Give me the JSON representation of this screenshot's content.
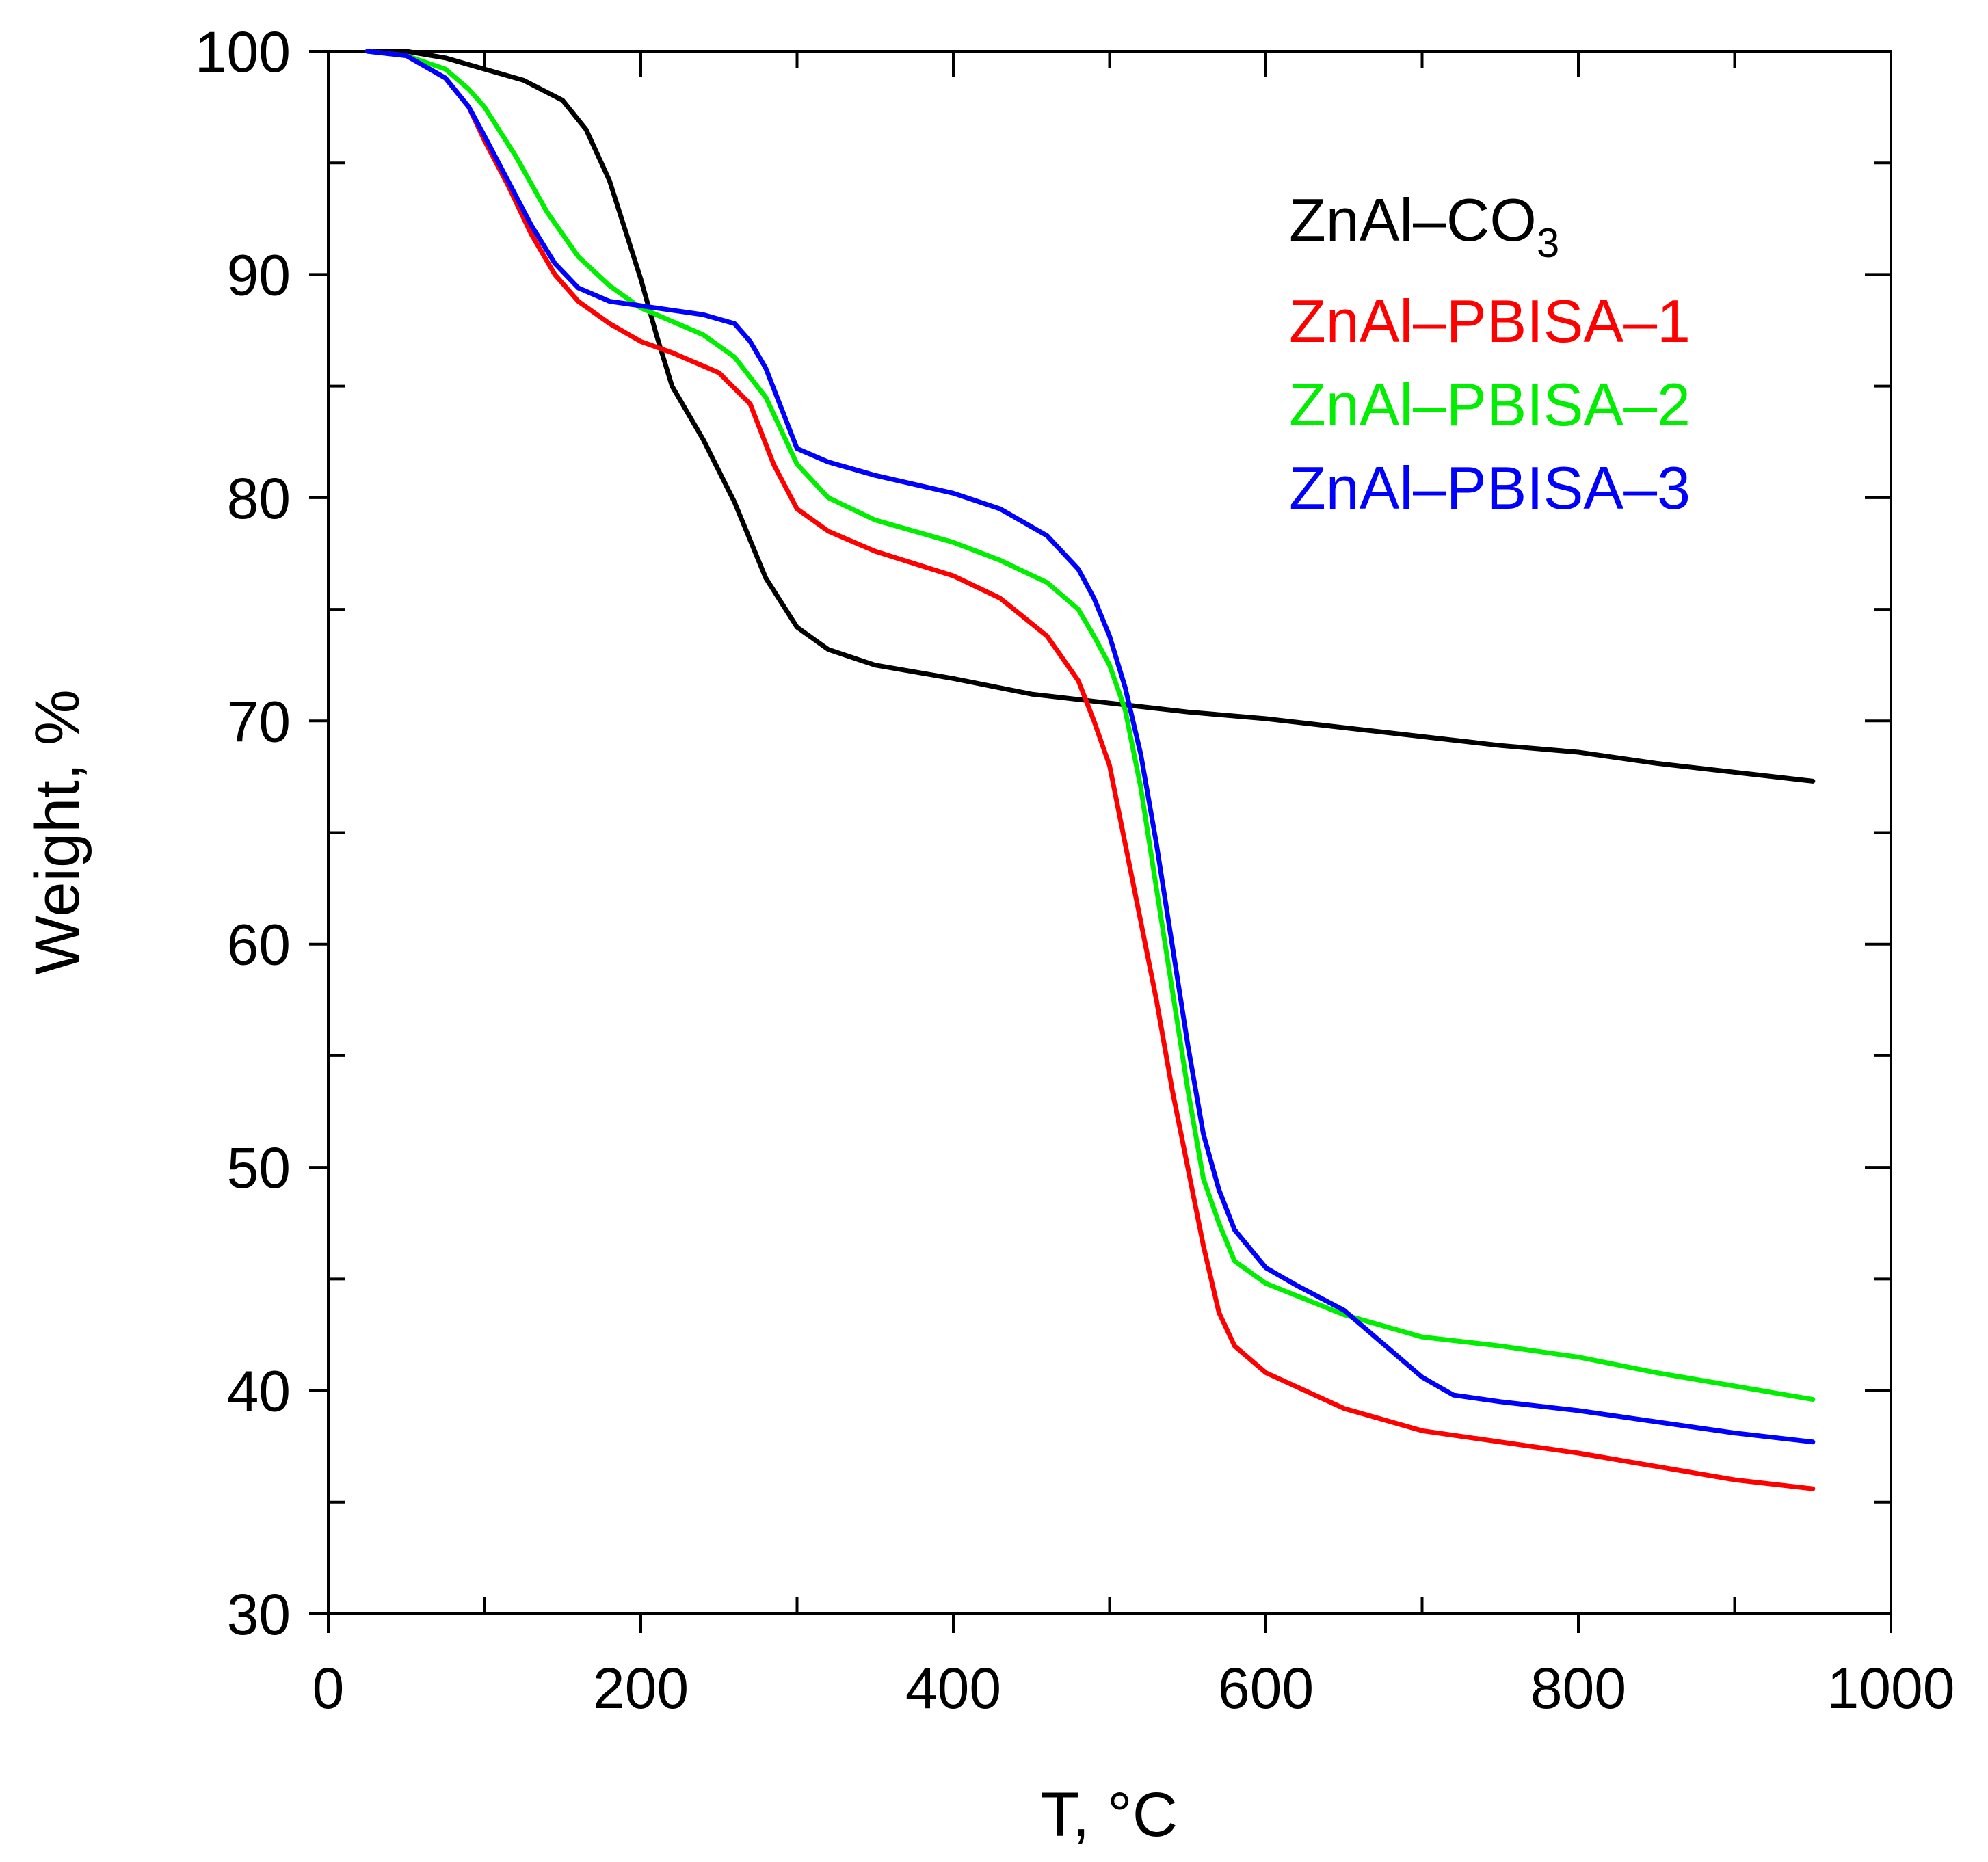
{
  "chart_data": {
    "type": "line",
    "title": "",
    "xlabel": "T, °C",
    "ylabel": "Weight, %",
    "xlim": [
      0,
      1000
    ],
    "ylim": [
      30,
      100
    ],
    "xticks": [
      0,
      200,
      400,
      600,
      800,
      1000
    ],
    "xtick_labels": [
      "0",
      "200",
      "400",
      "600",
      "800",
      "1000"
    ],
    "xminor": [
      100,
      300,
      500,
      700,
      900
    ],
    "yticks": [
      30,
      40,
      50,
      60,
      70,
      80,
      90,
      100
    ],
    "ytick_labels": [
      "30",
      "40",
      "50",
      "60",
      "70",
      "80",
      "90",
      "100"
    ],
    "yminor": [
      35,
      45,
      55,
      65,
      75,
      85,
      95
    ],
    "grid": false,
    "legend_position": "top-right",
    "series": [
      {
        "name": "ZnAl–CO3",
        "legend_main": "ZnAl–CO",
        "legend_sub": "3",
        "color": "#000000",
        "x": [
          25,
          50,
          75,
          100,
          125,
          150,
          165,
          180,
          190,
          200,
          210,
          220,
          240,
          260,
          280,
          300,
          320,
          350,
          400,
          450,
          500,
          550,
          600,
          650,
          700,
          750,
          800,
          850,
          900,
          950
        ],
        "y": [
          100,
          100,
          99.7,
          99.2,
          98.7,
          97.8,
          96.5,
          94.2,
          92.0,
          89.8,
          87.3,
          85.0,
          82.6,
          79.8,
          76.4,
          74.2,
          73.2,
          72.5,
          71.9,
          71.2,
          70.8,
          70.4,
          70.1,
          69.7,
          69.3,
          68.9,
          68.6,
          68.1,
          67.7,
          67.3
        ]
      },
      {
        "name": "ZnAl–PBISA–1",
        "color": "#ff0000",
        "x": [
          25,
          50,
          75,
          90,
          100,
          115,
          130,
          145,
          160,
          180,
          200,
          220,
          250,
          270,
          285,
          300,
          320,
          350,
          400,
          430,
          460,
          480,
          490,
          500,
          510,
          520,
          530,
          540,
          550,
          560,
          570,
          580,
          600,
          650,
          700,
          750,
          800,
          850,
          900,
          950
        ],
        "y": [
          100,
          99.8,
          98.8,
          97.5,
          96.0,
          94.0,
          91.8,
          90.0,
          88.8,
          87.8,
          87.0,
          86.5,
          85.6,
          84.2,
          81.5,
          79.5,
          78.5,
          77.6,
          76.5,
          75.5,
          73.8,
          71.8,
          70.0,
          68.0,
          64.5,
          61.0,
          57.5,
          53.5,
          50.0,
          46.5,
          43.5,
          42.0,
          40.8,
          39.2,
          38.2,
          37.7,
          37.2,
          36.6,
          36.0,
          35.6
        ]
      },
      {
        "name": "ZnAl–PBISA–2",
        "color": "#00ee00",
        "x": [
          25,
          50,
          75,
          90,
          100,
          120,
          140,
          160,
          180,
          200,
          220,
          240,
          260,
          280,
          300,
          320,
          350,
          400,
          430,
          460,
          480,
          490,
          500,
          510,
          520,
          530,
          540,
          550,
          560,
          570,
          580,
          600,
          650,
          700,
          750,
          800,
          850,
          900,
          950
        ],
        "y": [
          100,
          99.8,
          99.2,
          98.3,
          97.5,
          95.3,
          92.8,
          90.8,
          89.5,
          88.5,
          87.9,
          87.3,
          86.3,
          84.5,
          81.5,
          80.0,
          79.0,
          78.0,
          77.2,
          76.2,
          75.0,
          73.8,
          72.5,
          70.5,
          67.0,
          62.5,
          58.0,
          53.5,
          49.5,
          47.5,
          45.8,
          44.8,
          43.4,
          42.4,
          42.0,
          41.5,
          40.8,
          40.2,
          39.6
        ]
      },
      {
        "name": "ZnAl–PBISA–3",
        "color": "#0000ff",
        "x": [
          25,
          50,
          75,
          90,
          100,
          115,
          130,
          145,
          160,
          180,
          200,
          220,
          240,
          260,
          270,
          280,
          290,
          300,
          320,
          350,
          400,
          430,
          460,
          480,
          490,
          500,
          510,
          520,
          530,
          540,
          550,
          560,
          570,
          580,
          600,
          620,
          650,
          680,
          700,
          720,
          750,
          800,
          850,
          900,
          950
        ],
        "y": [
          100,
          99.8,
          98.8,
          97.5,
          96.2,
          94.2,
          92.2,
          90.5,
          89.4,
          88.8,
          88.6,
          88.4,
          88.2,
          87.8,
          87.0,
          85.8,
          84.0,
          82.2,
          81.6,
          81.0,
          80.2,
          79.5,
          78.3,
          76.8,
          75.5,
          73.8,
          71.5,
          68.5,
          64.5,
          60.0,
          55.5,
          51.5,
          49.0,
          47.2,
          45.5,
          44.7,
          43.6,
          41.8,
          40.6,
          39.8,
          39.5,
          39.1,
          38.6,
          38.1,
          37.7
        ]
      }
    ]
  }
}
